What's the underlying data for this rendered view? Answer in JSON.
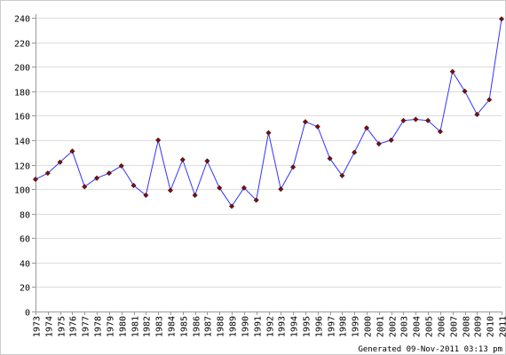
{
  "chart_data": {
    "type": "line",
    "x": [
      "1973",
      "1974",
      "1975",
      "1976",
      "1977",
      "1978",
      "1979",
      "1980",
      "1981",
      "1982",
      "1983",
      "1984",
      "1985",
      "1986",
      "1987",
      "1988",
      "1989",
      "1990",
      "1991",
      "1992",
      "1993",
      "1994",
      "1995",
      "1996",
      "1997",
      "1998",
      "1999",
      "2000",
      "2001",
      "2002",
      "2003",
      "2004",
      "2005",
      "2006",
      "2007",
      "2008",
      "2009",
      "2010",
      "2011"
    ],
    "series": [
      {
        "values": [
          108,
          113,
          122,
          131,
          102,
          109,
          113,
          119,
          103,
          95,
          140,
          99,
          124,
          95,
          123,
          101,
          86,
          101,
          91,
          146,
          100,
          118,
          155,
          151,
          125,
          111,
          130,
          150,
          137,
          140,
          156,
          157,
          156,
          147,
          196,
          180,
          161,
          173,
          239
        ]
      }
    ],
    "yticks": [
      0,
      20,
      40,
      60,
      80,
      100,
      120,
      140,
      160,
      180,
      200,
      220,
      240
    ],
    "ylim": [
      0,
      240
    ],
    "grid": true,
    "legend": false,
    "colors": {
      "line": "#3333ff",
      "marker_fill": "#990000",
      "marker_stroke": "#222222",
      "grid": "#dddddd",
      "axis": "#999999"
    },
    "footer": "Generated 09-Nov-2011 03:13 pm"
  }
}
